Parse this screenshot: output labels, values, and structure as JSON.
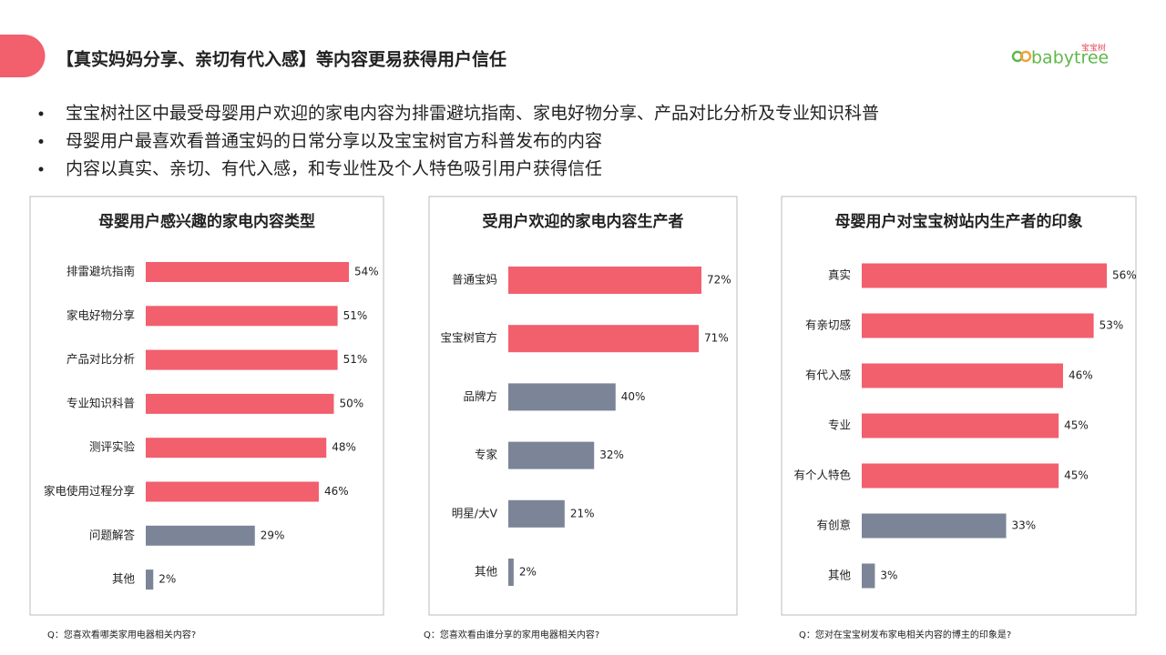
{
  "title": "【真实妈妈分享、亲切有代入感】等内容更易获得用户信任",
  "logo": {
    "brand_cn": "宝宝树",
    "brand_en": "babytree"
  },
  "bullets": [
    "宝宝树社区中最受母婴用户欢迎的家电内容为排雷避坑指南、家电好物分享、产品对比分析及专业知识科普",
    "母婴用户最喜欢看普通宝妈的日常分享以及宝宝树官方科普发布的内容",
    "内容以真实、亲切、有代入感，和专业性及个人特色吸引用户获得信任"
  ],
  "chart_data": [
    {
      "type": "bar",
      "orientation": "horizontal",
      "title": "母婴用户感兴趣的家电内容类型",
      "categories": [
        "排雷避坑指南",
        "家电好物分享",
        "产品对比分析",
        "专业知识科普",
        "测评实验",
        "家电使用过程分享",
        "问题解答",
        "其他"
      ],
      "values": [
        54,
        51,
        51,
        50,
        48,
        46,
        29,
        2
      ],
      "value_labels": [
        "54%",
        "51%",
        "51%",
        "50%",
        "48%",
        "46%",
        "29%",
        "2%"
      ],
      "colors": [
        "#f25f6d",
        "#f25f6d",
        "#f25f6d",
        "#f25f6d",
        "#f25f6d",
        "#f25f6d",
        "#7b8597",
        "#7b8597"
      ],
      "caption": "Q：您喜欢看哪类家用电器相关内容?"
    },
    {
      "type": "bar",
      "orientation": "horizontal",
      "title": "受用户欢迎的家电内容生产者",
      "categories": [
        "普通宝妈",
        "宝宝树官方",
        "品牌方",
        "专家",
        "明星/大V",
        "其他"
      ],
      "values": [
        72,
        71,
        40,
        32,
        21,
        2
      ],
      "value_labels": [
        "72%",
        "71%",
        "40%",
        "32%",
        "21%",
        "2%"
      ],
      "colors": [
        "#f25f6d",
        "#f25f6d",
        "#7b8597",
        "#7b8597",
        "#7b8597",
        "#7b8597"
      ],
      "caption": "Q：您喜欢看由谁分享的家用电器相关内容?"
    },
    {
      "type": "bar",
      "orientation": "horizontal",
      "title": "母婴用户对宝宝树站内生产者的印象",
      "categories": [
        "真实",
        "有亲切感",
        "有代入感",
        "专业",
        "有个人特色",
        "有创意",
        "其他"
      ],
      "values": [
        56,
        53,
        46,
        45,
        45,
        33,
        3
      ],
      "value_labels": [
        "56%",
        "53%",
        "46%",
        "45%",
        "45%",
        "33%",
        "3%"
      ],
      "colors": [
        "#f25f6d",
        "#f25f6d",
        "#f25f6d",
        "#f25f6d",
        "#f25f6d",
        "#7b8597",
        "#7b8597"
      ],
      "caption": "Q：您对在宝宝树发布家电相关内容的博主的印象是?"
    }
  ]
}
